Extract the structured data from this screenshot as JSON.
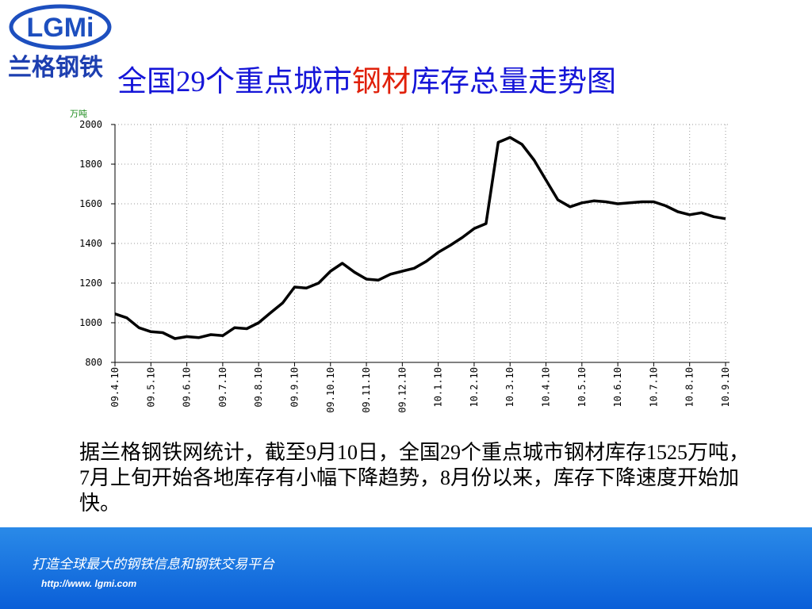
{
  "logo": {
    "mark": "LGMi",
    "name": "兰格钢铁"
  },
  "title": [
    "全国29个重点城市",
    "钢材",
    "库存总量走势图"
  ],
  "chart_data": {
    "type": "line",
    "y_unit": "万吨",
    "color": "#000000",
    "grid": true,
    "x": [
      0,
      0.33,
      0.67,
      1,
      1.33,
      1.67,
      2,
      2.33,
      2.67,
      3,
      3.33,
      3.67,
      4,
      4.33,
      4.67,
      5,
      5.33,
      5.67,
      6,
      6.33,
      6.67,
      7,
      7.33,
      7.67,
      8,
      8.33,
      8.67,
      9,
      9.33,
      9.67,
      10,
      10.33,
      10.67,
      11,
      11.33,
      11.67,
      12,
      12.33,
      12.67,
      13,
      13.33,
      13.67,
      14,
      14.33,
      14.67,
      15,
      15.33,
      15.67,
      16,
      16.33,
      16.67,
      17
    ],
    "values": [
      1045,
      1025,
      975,
      955,
      950,
      920,
      930,
      925,
      940,
      935,
      975,
      970,
      1000,
      1050,
      1100,
      1180,
      1175,
      1200,
      1260,
      1300,
      1255,
      1220,
      1215,
      1245,
      1260,
      1275,
      1310,
      1355,
      1390,
      1430,
      1475,
      1500,
      1910,
      1935,
      1900,
      1820,
      1720,
      1620,
      1585,
      1605,
      1615,
      1610,
      1600,
      1605,
      1610,
      1610,
      1590,
      1560,
      1545,
      1555,
      1535,
      1525
    ],
    "xlim": [
      0,
      17
    ],
    "xticks": [
      {
        "value": 0,
        "label": "09.4.10"
      },
      {
        "value": 1,
        "label": "09.5.10"
      },
      {
        "value": 2,
        "label": "09.6.10"
      },
      {
        "value": 3,
        "label": "09.7.10"
      },
      {
        "value": 4,
        "label": "09.8.10"
      },
      {
        "value": 5,
        "label": "09.9.10"
      },
      {
        "value": 6,
        "label": "09.10.10"
      },
      {
        "value": 7,
        "label": "09.11.10"
      },
      {
        "value": 8,
        "label": "09.12.10"
      },
      {
        "value": 9,
        "label": "10.1.10"
      },
      {
        "value": 10,
        "label": "10.2.10"
      },
      {
        "value": 11,
        "label": "10.3.10"
      },
      {
        "value": 12,
        "label": "10.4.10"
      },
      {
        "value": 13,
        "label": "10.5.10"
      },
      {
        "value": 14,
        "label": "10.6.10"
      },
      {
        "value": 15,
        "label": "10.7.10"
      },
      {
        "value": 16,
        "label": "10.8.10"
      },
      {
        "value": 17,
        "label": "10.9.10"
      }
    ],
    "ylim": [
      800,
      2000
    ],
    "yticks": [
      800,
      1000,
      1200,
      1400,
      1600,
      1800,
      2000
    ]
  },
  "text": "据兰格钢铁网统计，截至9月10日，全国29个重点城市钢材库存1525万吨，7月上旬开始各地库存有小幅下降趋势，8月份以来，库存下降速度开始加快。",
  "footer": {
    "slogan": "打造全球最大的钢铁信息和钢铁交易平台",
    "url": "http://www. lgmi.com"
  }
}
